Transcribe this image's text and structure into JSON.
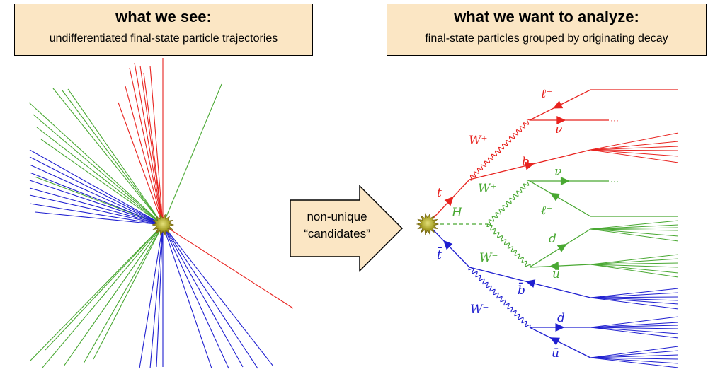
{
  "left_panel": {
    "title": "what we see:",
    "subtitle": "undifferentiated final-state particle trajectories"
  },
  "right_panel": {
    "title": "what we want to analyze:",
    "subtitle": "final-state particles grouped by originating decay"
  },
  "arrow": {
    "line1": "non-unique",
    "line2": "“candidates”"
  },
  "labels": {
    "t": "t",
    "tbar": "t̄",
    "H": "H",
    "W_plus_red": "W⁺",
    "W_plus_green": "W⁺",
    "W_minus_green": "W⁻",
    "W_minus_blue": "W⁻",
    "ell_plus_red": "ℓ⁺",
    "nu_red": "ν",
    "b": "b",
    "nu_green": "ν",
    "ell_plus_green": "ℓ⁺",
    "d_green": "d",
    "ubar_green": "ū",
    "bbar": "b̄",
    "d_blue": "d",
    "ubar_blue": "ū"
  },
  "colors": {
    "red": "#e8231f",
    "green": "#49a832",
    "blue": "#1f1fd0",
    "box_fill": "#fbe6c4"
  }
}
